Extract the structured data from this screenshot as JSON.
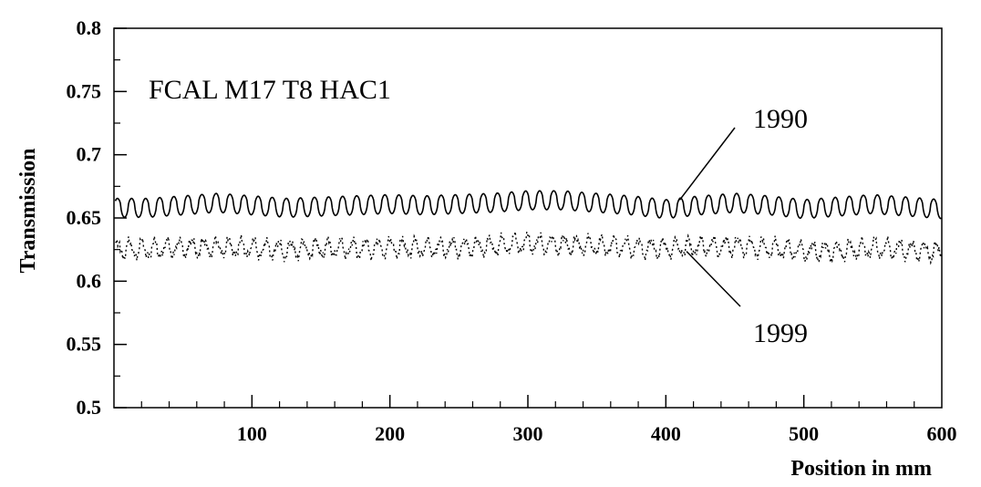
{
  "chart_data": {
    "type": "line",
    "title": "FCAL M17 T8 HAC1",
    "xlabel": "Position in mm",
    "ylabel": "Transmission",
    "xlim": [
      0,
      600
    ],
    "ylim": [
      0.5,
      0.8
    ],
    "x_ticks": [
      100,
      200,
      300,
      400,
      500,
      600
    ],
    "x_tick_labels": [
      "100",
      "200",
      "300",
      "400",
      "500",
      "600"
    ],
    "y_ticks": [
      0.5,
      0.55,
      0.6,
      0.65,
      0.7,
      0.75,
      0.8
    ],
    "y_tick_labels": [
      "0.5",
      "0.55",
      "0.6",
      "0.65",
      "0.7",
      "0.75",
      "0.8"
    ],
    "grid": false,
    "series": [
      {
        "name": "1990",
        "style": "solid",
        "color": "#000000",
        "x": [
          0,
          25,
          50,
          75,
          100,
          125,
          150,
          175,
          200,
          225,
          250,
          275,
          300,
          325,
          350,
          375,
          400,
          425,
          450,
          475,
          500,
          525,
          550,
          575,
          600
        ],
        "values": [
          0.658,
          0.658,
          0.66,
          0.662,
          0.66,
          0.658,
          0.659,
          0.66,
          0.661,
          0.66,
          0.661,
          0.662,
          0.664,
          0.664,
          0.662,
          0.66,
          0.657,
          0.66,
          0.662,
          0.66,
          0.657,
          0.659,
          0.661,
          0.659,
          0.657
        ]
      },
      {
        "name": "1999",
        "style": "dotted",
        "color": "#000000",
        "x": [
          0,
          25,
          50,
          75,
          100,
          125,
          150,
          175,
          200,
          225,
          250,
          275,
          300,
          325,
          350,
          375,
          400,
          425,
          450,
          475,
          500,
          525,
          550,
          575,
          600
        ],
        "values": [
          0.626,
          0.625,
          0.627,
          0.627,
          0.626,
          0.625,
          0.626,
          0.626,
          0.627,
          0.626,
          0.627,
          0.628,
          0.63,
          0.629,
          0.628,
          0.627,
          0.626,
          0.627,
          0.628,
          0.626,
          0.624,
          0.624,
          0.626,
          0.625,
          0.623
        ]
      }
    ],
    "annotations": [
      {
        "text": "1990",
        "series": "1990",
        "at_x": 410
      },
      {
        "text": "1999",
        "series": "1999",
        "at_x": 415
      }
    ]
  }
}
